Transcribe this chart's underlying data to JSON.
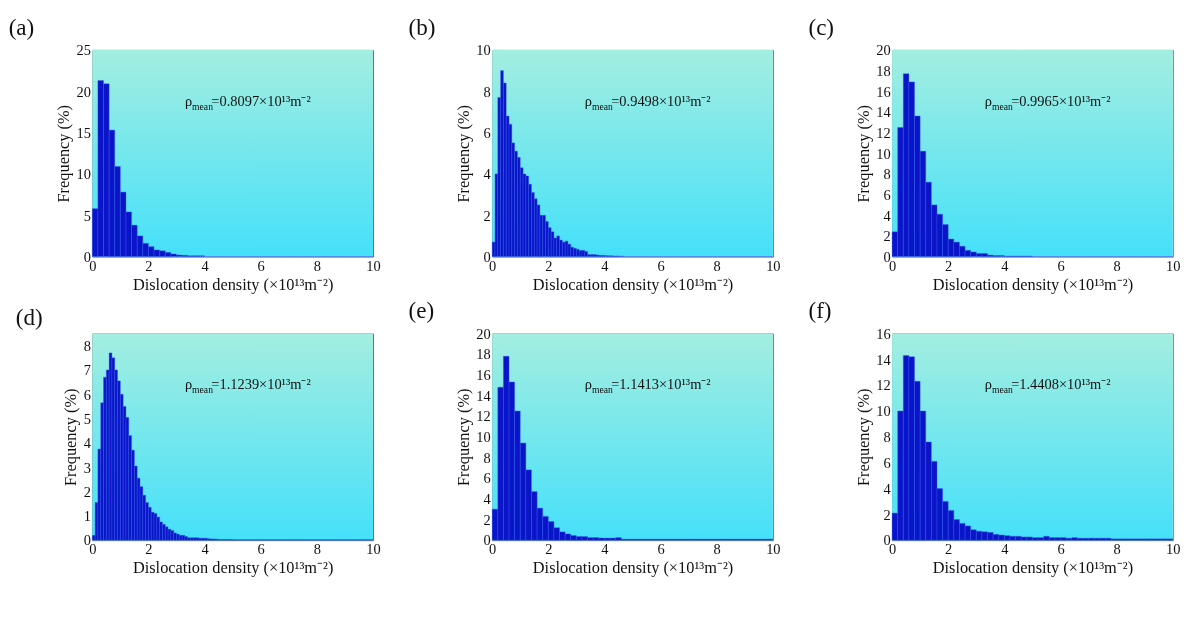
{
  "chart_data": [
    {
      "type": "histogram",
      "title": "(a)",
      "xlabel": "Dislocation density (×10¹³m⁻²)",
      "ylabel": "Frequency (%)",
      "annotations": [
        "ρ$_{mean}$=0.8097×10¹³m⁻²"
      ],
      "color": "#0a14c8",
      "xlim": [
        0,
        10
      ],
      "xticks": [
        0,
        2,
        4,
        6,
        8,
        10
      ],
      "ylim": [
        0,
        25
      ],
      "yticks": [
        0,
        5,
        10,
        15,
        20,
        25
      ],
      "bins": [
        0,
        0.2,
        0.4,
        0.6,
        0.8,
        1,
        1.2,
        1.4,
        1.6,
        1.8,
        2,
        2.2,
        2.4,
        2.6,
        2.8,
        3,
        3.2,
        3.4,
        3.6,
        3.8,
        4,
        4.2,
        4.4,
        4.6,
        4.8,
        5,
        5.2,
        5.4,
        5.6,
        5.8,
        6,
        6.2,
        6.4,
        6.6,
        6.8,
        7,
        7.2,
        7.4,
        7.6,
        7.8,
        8,
        8.2,
        8.4,
        8.6,
        8.8,
        9,
        9.2,
        9.4,
        9.6,
        9.8,
        10
      ],
      "values": [
        5.8,
        21.3,
        20.9,
        15.3,
        10.9,
        7.8,
        5.4,
        3.8,
        2.5,
        1.6,
        1.2,
        0.8,
        0.7,
        0.5,
        0.3,
        0.2,
        0.15,
        0.1,
        0.1,
        0.1,
        0,
        0,
        0,
        0,
        0,
        0,
        0,
        0,
        0,
        0,
        0,
        0,
        0,
        0,
        0,
        0,
        0,
        0,
        0,
        0,
        0,
        0,
        0,
        0,
        0,
        0,
        0,
        0,
        0,
        0
      ]
    },
    {
      "type": "histogram",
      "title": "(b)",
      "xlabel": "Dislocation density (×10¹³m⁻²)",
      "ylabel": "Frequency (%)",
      "annotations": [
        "ρ$_{mean}$=0.9498×10¹³m⁻²"
      ],
      "color": "#0a14c8",
      "xlim": [
        0,
        10
      ],
      "xticks": [
        0,
        2,
        4,
        6,
        8,
        10
      ],
      "ylim": [
        0,
        10
      ],
      "yticks": [
        0,
        2,
        4,
        6,
        8,
        10
      ],
      "bins": [
        0,
        0.1,
        0.2,
        0.3,
        0.4,
        0.5,
        0.6,
        0.7,
        0.8,
        0.9,
        1,
        1.1,
        1.2,
        1.3,
        1.4,
        1.5,
        1.6,
        1.7,
        1.8,
        1.9,
        2,
        2.1,
        2.2,
        2.3,
        2.4,
        2.5,
        2.6,
        2.7,
        2.8,
        2.9,
        3,
        3.1,
        3.2,
        3.3,
        3.4,
        3.5,
        3.6,
        3.7,
        3.8,
        3.9,
        4,
        4.1,
        4.2,
        4.3,
        4.4,
        4.5,
        4.6,
        4.7,
        4.8,
        4.9,
        5,
        5.1,
        5.2,
        5.3,
        5.4,
        5.5,
        5.6,
        5.7,
        5.8,
        5.9,
        6,
        6.1,
        6.2,
        6.3,
        6.4,
        6.5,
        6.6,
        6.7,
        6.8,
        6.9,
        7,
        7.1,
        7.2,
        7.3,
        7.4,
        7.5,
        7.6,
        7.7,
        7.8,
        7.9,
        8,
        8.1,
        8.2,
        8.3,
        8.4,
        8.5,
        8.6,
        8.7,
        8.8,
        8.9,
        9,
        9.1,
        9.2,
        9.3,
        9.4,
        9.5,
        9.6,
        9.7,
        9.8,
        9.9,
        10
      ],
      "values": [
        0.7,
        4.0,
        7.7,
        9.0,
        8.4,
        6.8,
        6.4,
        5.5,
        5.1,
        4.8,
        4.3,
        4.0,
        3.9,
        3.5,
        3.1,
        2.8,
        2.5,
        2.0,
        2.0,
        1.7,
        1.4,
        1.2,
        0.9,
        1.0,
        0.8,
        0.7,
        0.75,
        0.6,
        0.45,
        0.4,
        0.35,
        0.3,
        0.3,
        0.25,
        0.1,
        0.1,
        0.1,
        0.08,
        0.06,
        0.06,
        0.05,
        0.04,
        0.04,
        0.03,
        0.03,
        0.02,
        0.02,
        0,
        0,
        0,
        0,
        0,
        0,
        0,
        0,
        0,
        0,
        0,
        0,
        0,
        0,
        0,
        0,
        0,
        0,
        0,
        0,
        0,
        0,
        0,
        0,
        0,
        0,
        0,
        0,
        0,
        0,
        0,
        0,
        0,
        0,
        0,
        0,
        0,
        0,
        0,
        0,
        0,
        0,
        0,
        0,
        0,
        0,
        0,
        0,
        0,
        0,
        0,
        0,
        0
      ]
    },
    {
      "type": "histogram",
      "title": "(c)",
      "xlabel": "Dislocation density (×10¹³m⁻²)",
      "ylabel": "Frequency (%)",
      "annotations": [
        "ρ$_{mean}$=0.9965×10¹³m⁻²"
      ],
      "color": "#0a14c8",
      "xlim": [
        0,
        10
      ],
      "xticks": [
        0,
        2,
        4,
        6,
        8,
        10
      ],
      "ylim": [
        0,
        20
      ],
      "yticks": [
        0,
        2,
        4,
        6,
        8,
        10,
        12,
        14,
        16,
        18,
        20
      ],
      "bins": [
        0,
        0.2,
        0.4,
        0.6,
        0.8,
        1,
        1.2,
        1.4,
        1.6,
        1.8,
        2,
        2.2,
        2.4,
        2.6,
        2.8,
        3,
        3.2,
        3.4,
        3.6,
        3.8,
        4,
        4.2,
        4.4,
        4.6,
        4.8,
        5,
        5.2,
        5.4,
        5.6,
        5.8,
        6,
        6.2,
        6.4,
        6.6,
        6.8,
        7,
        7.2,
        7.4,
        7.6,
        7.8,
        8,
        8.2,
        8.4,
        8.6,
        8.8,
        9,
        9.2,
        9.4,
        9.6,
        9.8,
        10
      ],
      "values": [
        2.4,
        12.5,
        17.7,
        16.9,
        13.6,
        10.2,
        7.2,
        5.0,
        4.1,
        3.1,
        1.7,
        1.4,
        1.0,
        0.6,
        0.45,
        0.3,
        0.3,
        0.15,
        0.1,
        0.1,
        0.05,
        0.05,
        0.05,
        0.05,
        0.05,
        0,
        0,
        0,
        0,
        0,
        0,
        0,
        0,
        0,
        0,
        0,
        0,
        0,
        0,
        0,
        0,
        0,
        0,
        0,
        0,
        0,
        0,
        0,
        0,
        0
      ]
    },
    {
      "type": "histogram",
      "title": "(d)",
      "xlabel": "Dislocation density (×10¹³m⁻²)",
      "ylabel": "Frequency (%)",
      "annotations": [
        "ρ$_{mean}$=1.1239×10¹³m⁻²"
      ],
      "color": "#0a14c8",
      "xlim": [
        0,
        10
      ],
      "xticks": [
        0,
        2,
        4,
        6,
        8,
        10
      ],
      "ylim": [
        0,
        8.5
      ],
      "yticks": [
        0,
        1,
        2,
        3,
        4,
        5,
        6,
        7,
        8
      ],
      "bins": [
        0,
        0.1,
        0.2,
        0.3,
        0.4,
        0.5,
        0.6,
        0.7,
        0.8,
        0.9,
        1,
        1.1,
        1.2,
        1.3,
        1.4,
        1.5,
        1.6,
        1.7,
        1.8,
        1.9,
        2,
        2.1,
        2.2,
        2.3,
        2.4,
        2.5,
        2.6,
        2.7,
        2.8,
        2.9,
        3,
        3.1,
        3.2,
        3.3,
        3.4,
        3.5,
        3.6,
        3.7,
        3.8,
        3.9,
        4,
        4.1,
        4.2,
        4.3,
        4.4,
        4.5,
        4.6,
        4.7,
        4.8,
        4.9,
        5,
        5.1,
        5.2,
        5.3,
        5.4,
        5.5,
        5.6,
        5.7,
        5.8,
        5.9,
        6,
        6.1,
        6.2,
        6.3,
        6.4,
        6.5,
        6.6,
        6.7,
        6.8,
        6.9,
        7,
        7.1,
        7.2,
        7.3,
        7.4,
        7.5,
        7.6,
        7.7,
        7.8,
        7.9,
        8,
        8.1,
        8.2,
        8.3,
        8.4,
        8.5,
        8.6,
        8.7,
        8.8,
        8.9,
        9,
        9.1,
        9.2,
        9.3,
        9.4,
        9.5,
        9.6,
        9.7,
        9.8,
        9.9,
        10
      ],
      "values": [
        0.2,
        1.55,
        3.75,
        5.65,
        6.7,
        7.0,
        7.7,
        7.5,
        7.0,
        6.55,
        6.0,
        5.5,
        5.05,
        4.3,
        3.7,
        3.05,
        2.55,
        2.2,
        1.85,
        1.55,
        1.35,
        1.15,
        1.1,
        0.95,
        0.75,
        0.65,
        0.55,
        0.45,
        0.4,
        0.3,
        0.25,
        0.2,
        0.2,
        0.15,
        0.1,
        0.1,
        0.1,
        0.1,
        0.08,
        0.08,
        0.08,
        0.06,
        0.05,
        0.05,
        0.04,
        0.03,
        0.03,
        0.03,
        0.03,
        0.03,
        0.02,
        0.02,
        0.02,
        0.02,
        0.02,
        0.02,
        0.02,
        0.02,
        0.02,
        0.02,
        0.02,
        0.02,
        0.02,
        0.02,
        0.02,
        0.02,
        0.02,
        0.02,
        0.02,
        0.02,
        0.02,
        0.02,
        0.02,
        0.02,
        0.02,
        0.02,
        0.02,
        0.02,
        0.02,
        0.02,
        0.02,
        0.02,
        0.02,
        0.02,
        0.02,
        0.02,
        0.02,
        0.02,
        0.02,
        0.02,
        0.02,
        0.02,
        0.02,
        0.02,
        0.02,
        0.02,
        0.02,
        0.02,
        0.02,
        0.02
      ]
    },
    {
      "type": "histogram",
      "title": "(e)",
      "xlabel": "Dislocation density (×10¹³m⁻²)",
      "ylabel": "Frequency (%)",
      "annotations": [
        "ρ$_{mean}$=1.1413×10¹³m⁻²"
      ],
      "color": "#0a14c8",
      "xlim": [
        0,
        10
      ],
      "xticks": [
        0,
        2,
        4,
        6,
        8,
        10
      ],
      "ylim": [
        0,
        20
      ],
      "yticks": [
        0,
        2,
        4,
        6,
        8,
        10,
        12,
        14,
        16,
        18,
        20
      ],
      "bins": [
        0,
        0.2,
        0.4,
        0.6,
        0.8,
        1,
        1.2,
        1.4,
        1.6,
        1.8,
        2,
        2.2,
        2.4,
        2.6,
        2.8,
        3,
        3.2,
        3.4,
        3.6,
        3.8,
        4,
        4.2,
        4.4,
        4.6,
        4.8,
        5,
        5.2,
        5.4,
        5.6,
        5.8,
        6,
        6.2,
        6.4,
        6.6,
        6.8,
        7,
        7.2,
        7.4,
        7.6,
        7.8,
        8,
        8.2,
        8.4,
        8.6,
        8.8,
        9,
        9.2,
        9.4,
        9.6,
        9.8,
        10
      ],
      "values": [
        3.0,
        14.8,
        17.8,
        15.3,
        12.5,
        9.4,
        6.8,
        4.7,
        3.1,
        2.3,
        1.8,
        1.2,
        0.8,
        0.6,
        0.45,
        0.35,
        0.35,
        0.25,
        0.25,
        0.2,
        0.2,
        0.2,
        0.25,
        0.1,
        0.1,
        0.1,
        0.1,
        0.1,
        0.1,
        0.1,
        0.1,
        0.1,
        0.1,
        0.1,
        0.1,
        0.1,
        0.1,
        0.1,
        0.1,
        0.1,
        0.1,
        0.1,
        0.1,
        0.1,
        0.1,
        0.1,
        0.1,
        0.1,
        0.1,
        0.1
      ]
    },
    {
      "type": "histogram",
      "title": "(f)",
      "xlabel": "Dislocation density (×10¹³m⁻²)",
      "ylabel": "Frequency (%)",
      "annotations": [
        "ρ$_{mean}$=1.4408×10¹³m⁻²"
      ],
      "color": "#0a14c8",
      "xlim": [
        0,
        10
      ],
      "xticks": [
        0,
        2,
        4,
        6,
        8,
        10
      ],
      "ylim": [
        0,
        16
      ],
      "yticks": [
        0,
        2,
        4,
        6,
        8,
        10,
        12,
        14,
        16
      ],
      "bins": [
        0,
        0.2,
        0.4,
        0.6,
        0.8,
        1,
        1.2,
        1.4,
        1.6,
        1.8,
        2,
        2.2,
        2.4,
        2.6,
        2.8,
        3,
        3.2,
        3.4,
        3.6,
        3.8,
        4,
        4.2,
        4.4,
        4.6,
        4.8,
        5,
        5.2,
        5.4,
        5.6,
        5.8,
        6,
        6.2,
        6.4,
        6.6,
        6.8,
        7,
        7.2,
        7.4,
        7.6,
        7.8,
        8,
        8.2,
        8.4,
        8.6,
        8.8,
        9,
        9.2,
        9.4,
        9.6,
        9.8,
        10
      ],
      "values": [
        2.1,
        10.0,
        14.3,
        14.2,
        12.3,
        10.0,
        7.6,
        6.1,
        4.0,
        3.0,
        2.3,
        1.6,
        1.3,
        1.1,
        0.8,
        0.7,
        0.65,
        0.6,
        0.45,
        0.4,
        0.35,
        0.3,
        0.3,
        0.25,
        0.25,
        0.2,
        0.2,
        0.3,
        0.2,
        0.2,
        0.2,
        0.15,
        0.2,
        0.15,
        0.15,
        0.15,
        0.15,
        0.15,
        0.15,
        0.1,
        0.1,
        0.1,
        0.1,
        0.1,
        0.1,
        0.1,
        0.1,
        0.1,
        0.1,
        0.1
      ]
    }
  ]
}
